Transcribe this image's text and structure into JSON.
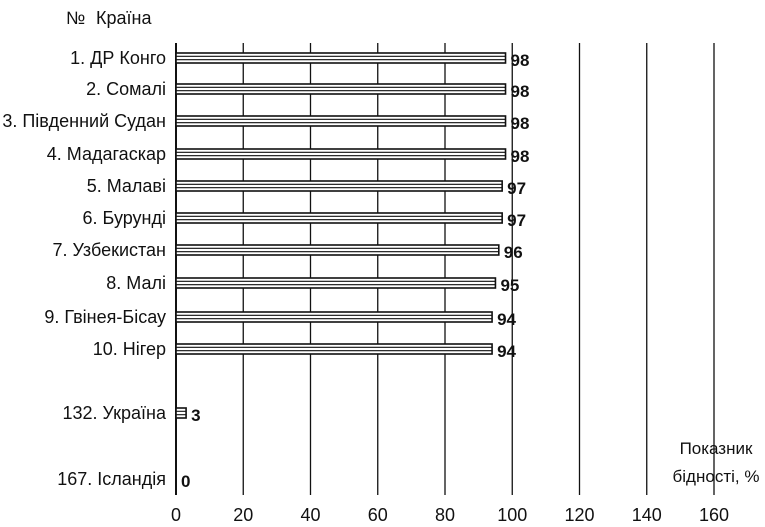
{
  "header": {
    "number_label": "№",
    "country_label": "Країна"
  },
  "chart_data": {
    "type": "bar",
    "orientation": "horizontal",
    "categories": [
      "1. ДР Конго",
      "2. Сомалі",
      "3. Південний Судан",
      "4. Мадагаскар",
      "5. Малаві",
      "6. Бурунді",
      "7. Узбекистан",
      "8. Малі",
      "9. Гвінея-Бісау",
      "10. Нігер",
      "132. Україна",
      "167. Ісландія"
    ],
    "values": [
      98,
      98,
      98,
      98,
      97,
      97,
      96,
      95,
      94,
      94,
      3,
      0
    ],
    "value_labels": [
      "98",
      "98",
      "98",
      "98",
      "97",
      "97",
      "96",
      "95",
      "94",
      "94",
      "3",
      "0"
    ],
    "xlim": [
      0,
      160
    ],
    "x_ticks": [
      "0",
      "20",
      "40",
      "60",
      "80",
      "100",
      "120",
      "140",
      "160"
    ],
    "xlabel_lines": [
      "Показник",
      "бідності, %"
    ],
    "grid": "vertical",
    "bar_style": "hollow-striped",
    "colors": {
      "bar_stroke": "#111111",
      "bar_fill": "#ffffff",
      "grid": "#111111",
      "text": "#111111"
    }
  }
}
